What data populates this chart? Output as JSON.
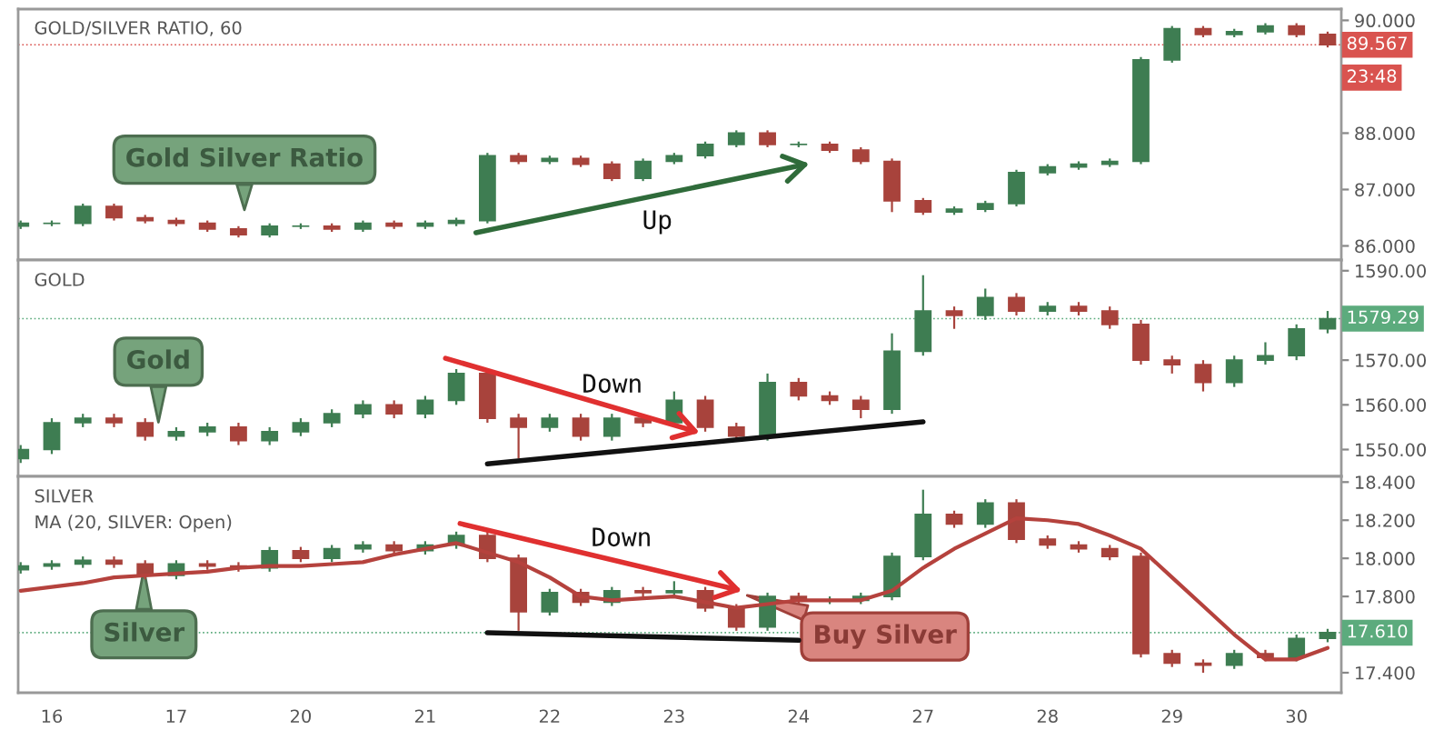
{
  "chart_data": [
    {
      "type": "candlestick",
      "title": "GOLD/SILVER RATIO, 60",
      "categories": [
        null,
        "16",
        null,
        null,
        null,
        "17",
        null,
        null,
        null,
        "20",
        null,
        null,
        null,
        "21",
        null,
        null,
        null,
        "22",
        null,
        null,
        null,
        "23",
        null,
        null,
        null,
        "24",
        null,
        null,
        null,
        "27",
        null,
        null,
        null,
        "28",
        null,
        null,
        null,
        "29",
        null,
        null,
        null,
        "30",
        null
      ],
      "ohlc": [
        [
          86.35,
          86.45,
          86.3,
          86.4
        ],
        [
          86.4,
          86.45,
          86.35,
          86.4
        ],
        [
          86.4,
          86.75,
          86.35,
          86.7
        ],
        [
          86.7,
          86.75,
          86.45,
          86.5
        ],
        [
          86.5,
          86.55,
          86.4,
          86.45
        ],
        [
          86.45,
          86.5,
          86.35,
          86.4
        ],
        [
          86.4,
          86.45,
          86.25,
          86.3
        ],
        [
          86.3,
          86.35,
          86.15,
          86.2
        ],
        [
          86.2,
          86.4,
          86.15,
          86.35
        ],
        [
          86.35,
          86.4,
          86.3,
          86.35
        ],
        [
          86.35,
          86.4,
          86.25,
          86.3
        ],
        [
          86.3,
          86.45,
          86.25,
          86.4
        ],
        [
          86.4,
          86.45,
          86.3,
          86.35
        ],
        [
          86.35,
          86.45,
          86.3,
          86.4
        ],
        [
          86.4,
          86.5,
          86.35,
          86.45
        ],
        [
          86.45,
          87.65,
          86.4,
          87.6
        ],
        [
          87.6,
          87.65,
          87.45,
          87.5
        ],
        [
          87.5,
          87.6,
          87.45,
          87.55
        ],
        [
          87.55,
          87.6,
          87.4,
          87.45
        ],
        [
          87.45,
          87.5,
          87.15,
          87.2
        ],
        [
          87.2,
          87.55,
          87.15,
          87.5
        ],
        [
          87.5,
          87.65,
          87.45,
          87.6
        ],
        [
          87.6,
          87.85,
          87.55,
          87.8
        ],
        [
          87.8,
          88.05,
          87.75,
          88.0
        ],
        [
          88.0,
          88.05,
          87.75,
          87.8
        ],
        [
          87.8,
          87.85,
          87.75,
          87.8
        ],
        [
          87.8,
          87.85,
          87.65,
          87.7
        ],
        [
          87.7,
          87.75,
          87.45,
          87.5
        ],
        [
          87.5,
          87.55,
          86.6,
          86.8
        ],
        [
          86.8,
          86.85,
          86.55,
          86.6
        ],
        [
          86.6,
          86.7,
          86.55,
          86.65
        ],
        [
          86.65,
          86.8,
          86.6,
          86.75
        ],
        [
          86.75,
          87.35,
          86.7,
          87.3
        ],
        [
          87.3,
          87.45,
          87.25,
          87.4
        ],
        [
          87.4,
          87.5,
          87.35,
          87.45
        ],
        [
          87.45,
          87.55,
          87.4,
          87.5
        ],
        [
          87.5,
          89.35,
          87.45,
          89.3
        ],
        [
          89.3,
          89.9,
          89.25,
          89.85
        ],
        [
          89.85,
          89.9,
          89.7,
          89.75
        ],
        [
          89.75,
          89.85,
          89.7,
          89.8
        ],
        [
          89.8,
          89.95,
          89.75,
          89.9
        ],
        [
          89.9,
          89.95,
          89.7,
          89.75
        ],
        [
          89.75,
          89.8,
          89.52,
          89.567
        ]
      ],
      "colors": [
        "#3e7d52",
        "#3e7d52",
        "#3e7d52",
        "#a8433c",
        "#a8433c",
        "#a8433c",
        "#a8433c",
        "#a8433c",
        "#3e7d52",
        "#3e7d52",
        "#a8433c",
        "#3e7d52",
        "#a8433c",
        "#3e7d52",
        "#3e7d52",
        "#3e7d52",
        "#a8433c",
        "#3e7d52",
        "#a8433c",
        "#a8433c",
        "#3e7d52",
        "#3e7d52",
        "#3e7d52",
        "#3e7d52",
        "#a8433c",
        "#3e7d52",
        "#a8433c",
        "#a8433c",
        "#a8433c",
        "#a8433c",
        "#3e7d52",
        "#3e7d52",
        "#3e7d52",
        "#3e7d52",
        "#3e7d52",
        "#3e7d52",
        "#3e7d52",
        "#3e7d52",
        "#a8433c",
        "#3e7d52",
        "#3e7d52",
        "#a8433c",
        "#a8433c"
      ],
      "ylim": [
        85.75,
        90.2
      ],
      "yticks": [
        {
          "value": 86,
          "label": "86.000"
        },
        {
          "value": 87,
          "label": "87.000"
        },
        {
          "value": 88,
          "label": "88.000"
        },
        {
          "value": 90,
          "label": "90.000"
        }
      ],
      "tick_labels": "y",
      "ref_lines": [
        {
          "axis": "y",
          "value": 89.567,
          "label": "89.567",
          "color": "#d9534f"
        }
      ],
      "annotations": [
        "Gold Silver Ratio",
        "Up",
        "23:48"
      ]
    },
    {
      "type": "candlestick",
      "title": "GOLD",
      "categories": [
        null,
        "16",
        null,
        null,
        null,
        "17",
        null,
        null,
        null,
        "20",
        null,
        null,
        null,
        "21",
        null,
        null,
        null,
        "22",
        null,
        null,
        null,
        "23",
        null,
        null,
        null,
        "24",
        null,
        null,
        null,
        "27",
        null,
        null,
        null,
        "28",
        null,
        null,
        null,
        "29",
        null,
        null,
        null,
        "30",
        null
      ],
      "ohlc": [
        [
          1548,
          1551,
          1547,
          1550
        ],
        [
          1550,
          1557,
          1549,
          1556
        ],
        [
          1556,
          1558,
          1555,
          1557
        ],
        [
          1557,
          1558,
          1555,
          1556
        ],
        [
          1556,
          1557,
          1552,
          1553
        ],
        [
          1553,
          1555,
          1552,
          1554
        ],
        [
          1554,
          1556,
          1553,
          1555
        ],
        [
          1555,
          1556,
          1551,
          1552
        ],
        [
          1552,
          1555,
          1551,
          1554
        ],
        [
          1554,
          1557,
          1553,
          1556
        ],
        [
          1556,
          1559,
          1555,
          1558
        ],
        [
          1558,
          1561,
          1557,
          1560
        ],
        [
          1560,
          1561,
          1557,
          1558
        ],
        [
          1558,
          1562,
          1557,
          1561
        ],
        [
          1561,
          1568,
          1560,
          1567
        ],
        [
          1567,
          1568,
          1556,
          1557
        ],
        [
          1557,
          1558,
          1548,
          1555
        ],
        [
          1555,
          1558,
          1554,
          1557
        ],
        [
          1557,
          1558,
          1552,
          1553
        ],
        [
          1553,
          1558,
          1552,
          1557
        ],
        [
          1557,
          1558,
          1555,
          1556
        ],
        [
          1556,
          1563,
          1555,
          1561
        ],
        [
          1561,
          1562,
          1554,
          1555
        ],
        [
          1555,
          1556,
          1552,
          1553
        ],
        [
          1553,
          1567,
          1552,
          1565
        ],
        [
          1565,
          1566,
          1561,
          1562
        ],
        [
          1562,
          1563,
          1560,
          1561
        ],
        [
          1561,
          1562,
          1557,
          1559
        ],
        [
          1559,
          1576,
          1558,
          1572
        ],
        [
          1572,
          1589,
          1571,
          1581
        ],
        [
          1581,
          1582,
          1577,
          1580
        ],
        [
          1580,
          1586,
          1579,
          1584
        ],
        [
          1584,
          1585,
          1580,
          1581
        ],
        [
          1581,
          1583,
          1580,
          1582
        ],
        [
          1582,
          1583,
          1580,
          1581
        ],
        [
          1581,
          1582,
          1577,
          1578
        ],
        [
          1578,
          1579,
          1569,
          1570
        ],
        [
          1570,
          1571,
          1567,
          1569
        ],
        [
          1569,
          1570,
          1563,
          1565
        ],
        [
          1565,
          1571,
          1564,
          1570
        ],
        [
          1570,
          1574,
          1569,
          1571
        ],
        [
          1571,
          1578,
          1570,
          1577
        ],
        [
          1577,
          1581,
          1576,
          1579.29
        ]
      ],
      "colors": [
        "#3e7d52",
        "#3e7d52",
        "#3e7d52",
        "#a8433c",
        "#a8433c",
        "#3e7d52",
        "#3e7d52",
        "#a8433c",
        "#3e7d52",
        "#3e7d52",
        "#3e7d52",
        "#3e7d52",
        "#a8433c",
        "#3e7d52",
        "#3e7d52",
        "#a8433c",
        "#a8433c",
        "#3e7d52",
        "#a8433c",
        "#3e7d52",
        "#a8433c",
        "#3e7d52",
        "#a8433c",
        "#a8433c",
        "#3e7d52",
        "#a8433c",
        "#a8433c",
        "#a8433c",
        "#3e7d52",
        "#3e7d52",
        "#a8433c",
        "#3e7d52",
        "#a8433c",
        "#3e7d52",
        "#a8433c",
        "#a8433c",
        "#a8433c",
        "#a8433c",
        "#a8433c",
        "#3e7d52",
        "#3e7d52",
        "#3e7d52",
        "#3e7d52"
      ],
      "ylim": [
        1544,
        1592.4
      ],
      "yticks": [
        {
          "value": 1550,
          "label": "1550.00"
        },
        {
          "value": 1560,
          "label": "1560.00"
        },
        {
          "value": 1570,
          "label": "1570.00"
        },
        {
          "value": 1590,
          "label": "1590.00"
        }
      ],
      "tick_labels": "y",
      "series": [
        {
          "type": "line",
          "color": "#111111",
          "values": [
            null,
            null,
            null,
            null,
            null,
            null,
            null,
            null,
            null,
            null,
            null,
            null,
            null,
            null,
            null,
            1546.8,
            null,
            null,
            null,
            null,
            null,
            null,
            null,
            null,
            null,
            null,
            null,
            null,
            null,
            1556.2,
            null,
            null,
            null,
            null,
            null,
            null,
            null,
            null,
            null,
            null,
            null,
            null,
            null
          ]
        }
      ],
      "ref_lines": [
        {
          "axis": "y",
          "value": 1579.29,
          "label": "1579.29",
          "color": "#5cab7d"
        }
      ],
      "annotations": [
        "Gold",
        "Down"
      ]
    },
    {
      "type": "candlestick",
      "title": "SILVER",
      "categories": [
        null,
        "16",
        null,
        null,
        null,
        "17",
        null,
        null,
        null,
        "20",
        null,
        null,
        null,
        "21",
        null,
        null,
        null,
        "22",
        null,
        null,
        null,
        "23",
        null,
        null,
        null,
        "24",
        null,
        null,
        null,
        "27",
        null,
        null,
        null,
        "28",
        null,
        null,
        null,
        "29",
        null,
        null,
        null,
        "30",
        null
      ],
      "ohlc": [
        [
          17.94,
          17.98,
          17.92,
          17.96
        ],
        [
          17.96,
          17.99,
          17.94,
          17.97
        ],
        [
          17.97,
          18.01,
          17.95,
          17.99
        ],
        [
          17.99,
          18.01,
          17.95,
          17.97
        ],
        [
          17.97,
          17.99,
          17.89,
          17.91
        ],
        [
          17.91,
          17.99,
          17.89,
          17.97
        ],
        [
          17.97,
          17.99,
          17.94,
          17.96
        ],
        [
          17.96,
          17.98,
          17.93,
          17.95
        ],
        [
          17.95,
          18.06,
          17.93,
          18.04
        ],
        [
          18.04,
          18.06,
          17.98,
          18.0
        ],
        [
          18.0,
          18.07,
          17.98,
          18.05
        ],
        [
          18.05,
          18.09,
          18.03,
          18.07
        ],
        [
          18.07,
          18.09,
          18.02,
          18.04
        ],
        [
          18.04,
          18.09,
          18.02,
          18.07
        ],
        [
          18.07,
          18.14,
          18.05,
          18.12
        ],
        [
          18.12,
          18.14,
          17.98,
          18.0
        ],
        [
          18.0,
          18.02,
          17.62,
          17.72
        ],
        [
          17.72,
          17.84,
          17.7,
          17.82
        ],
        [
          17.82,
          17.84,
          17.75,
          17.77
        ],
        [
          17.77,
          17.85,
          17.75,
          17.83
        ],
        [
          17.83,
          17.85,
          17.8,
          17.82
        ],
        [
          17.82,
          17.88,
          17.8,
          17.83
        ],
        [
          17.83,
          17.85,
          17.72,
          17.74
        ],
        [
          17.74,
          17.76,
          17.62,
          17.64
        ],
        [
          17.64,
          17.82,
          17.62,
          17.8
        ],
        [
          17.8,
          17.82,
          17.76,
          17.78
        ],
        [
          17.78,
          17.8,
          17.76,
          17.78
        ],
        [
          17.78,
          17.82,
          17.76,
          17.8
        ],
        [
          17.8,
          18.03,
          17.78,
          18.01
        ],
        [
          18.01,
          18.36,
          17.99,
          18.23
        ],
        [
          18.23,
          18.25,
          18.16,
          18.18
        ],
        [
          18.18,
          18.31,
          18.16,
          18.29
        ],
        [
          18.29,
          18.31,
          18.08,
          18.1
        ],
        [
          18.1,
          18.12,
          18.05,
          18.07
        ],
        [
          18.07,
          18.09,
          18.03,
          18.05
        ],
        [
          18.05,
          18.07,
          17.99,
          18.01
        ],
        [
          18.01,
          18.03,
          17.48,
          17.5
        ],
        [
          17.5,
          17.52,
          17.43,
          17.45
        ],
        [
          17.45,
          17.47,
          17.4,
          17.44
        ],
        [
          17.44,
          17.52,
          17.42,
          17.5
        ],
        [
          17.5,
          17.52,
          17.46,
          17.48
        ],
        [
          17.48,
          17.6,
          17.46,
          17.58
        ],
        [
          17.58,
          17.63,
          17.56,
          17.61
        ]
      ],
      "colors": [
        "#3e7d52",
        "#3e7d52",
        "#3e7d52",
        "#a8433c",
        "#a8433c",
        "#3e7d52",
        "#a8433c",
        "#a8433c",
        "#3e7d52",
        "#a8433c",
        "#3e7d52",
        "#3e7d52",
        "#a8433c",
        "#3e7d52",
        "#3e7d52",
        "#a8433c",
        "#a8433c",
        "#3e7d52",
        "#a8433c",
        "#3e7d52",
        "#a8433c",
        "#3e7d52",
        "#a8433c",
        "#a8433c",
        "#3e7d52",
        "#a8433c",
        "#3e7d52",
        "#3e7d52",
        "#3e7d52",
        "#3e7d52",
        "#a8433c",
        "#3e7d52",
        "#a8433c",
        "#a8433c",
        "#a8433c",
        "#a8433c",
        "#a8433c",
        "#a8433c",
        "#a8433c",
        "#3e7d52",
        "#a8433c",
        "#3e7d52",
        "#3e7d52"
      ],
      "ylim": [
        17.295,
        18.43
      ],
      "yticks": [
        {
          "value": 17.4,
          "label": "17.400"
        },
        {
          "value": 17.8,
          "label": "17.800"
        },
        {
          "value": 18.0,
          "label": "18.000"
        },
        {
          "value": 18.2,
          "label": "18.200"
        },
        {
          "value": 18.4,
          "label": "18.400"
        }
      ],
      "series": [
        {
          "type": "line",
          "name": "MA (20, SILVER: Open)",
          "color": "#b5423d",
          "values": [
            17.83,
            17.85,
            17.87,
            17.9,
            17.91,
            17.92,
            17.93,
            17.95,
            17.96,
            17.96,
            17.97,
            17.98,
            18.02,
            18.05,
            18.08,
            18.03,
            17.98,
            17.9,
            17.8,
            17.78,
            17.79,
            17.8,
            17.77,
            17.74,
            17.76,
            17.78,
            17.78,
            17.78,
            17.83,
            17.95,
            18.05,
            18.13,
            18.21,
            18.2,
            18.18,
            18.12,
            18.05,
            17.9,
            17.75,
            17.6,
            17.47,
            17.47,
            17.53
          ]
        },
        {
          "type": "line",
          "color": "#111111",
          "values": [
            null,
            null,
            null,
            null,
            null,
            null,
            null,
            null,
            null,
            null,
            null,
            null,
            null,
            null,
            null,
            17.61,
            null,
            null,
            null,
            null,
            null,
            null,
            null,
            null,
            null,
            17.57,
            null,
            null,
            null,
            null,
            null,
            null,
            null,
            null,
            null,
            null,
            null,
            null,
            null,
            null,
            null,
            null,
            null
          ]
        }
      ],
      "ref_lines": [
        {
          "axis": "y",
          "value": 17.61,
          "label": "17.610",
          "color": "#5cab7d"
        }
      ],
      "annotations": [
        "Silver",
        "Down",
        "Buy Silver"
      ]
    }
  ]
}
